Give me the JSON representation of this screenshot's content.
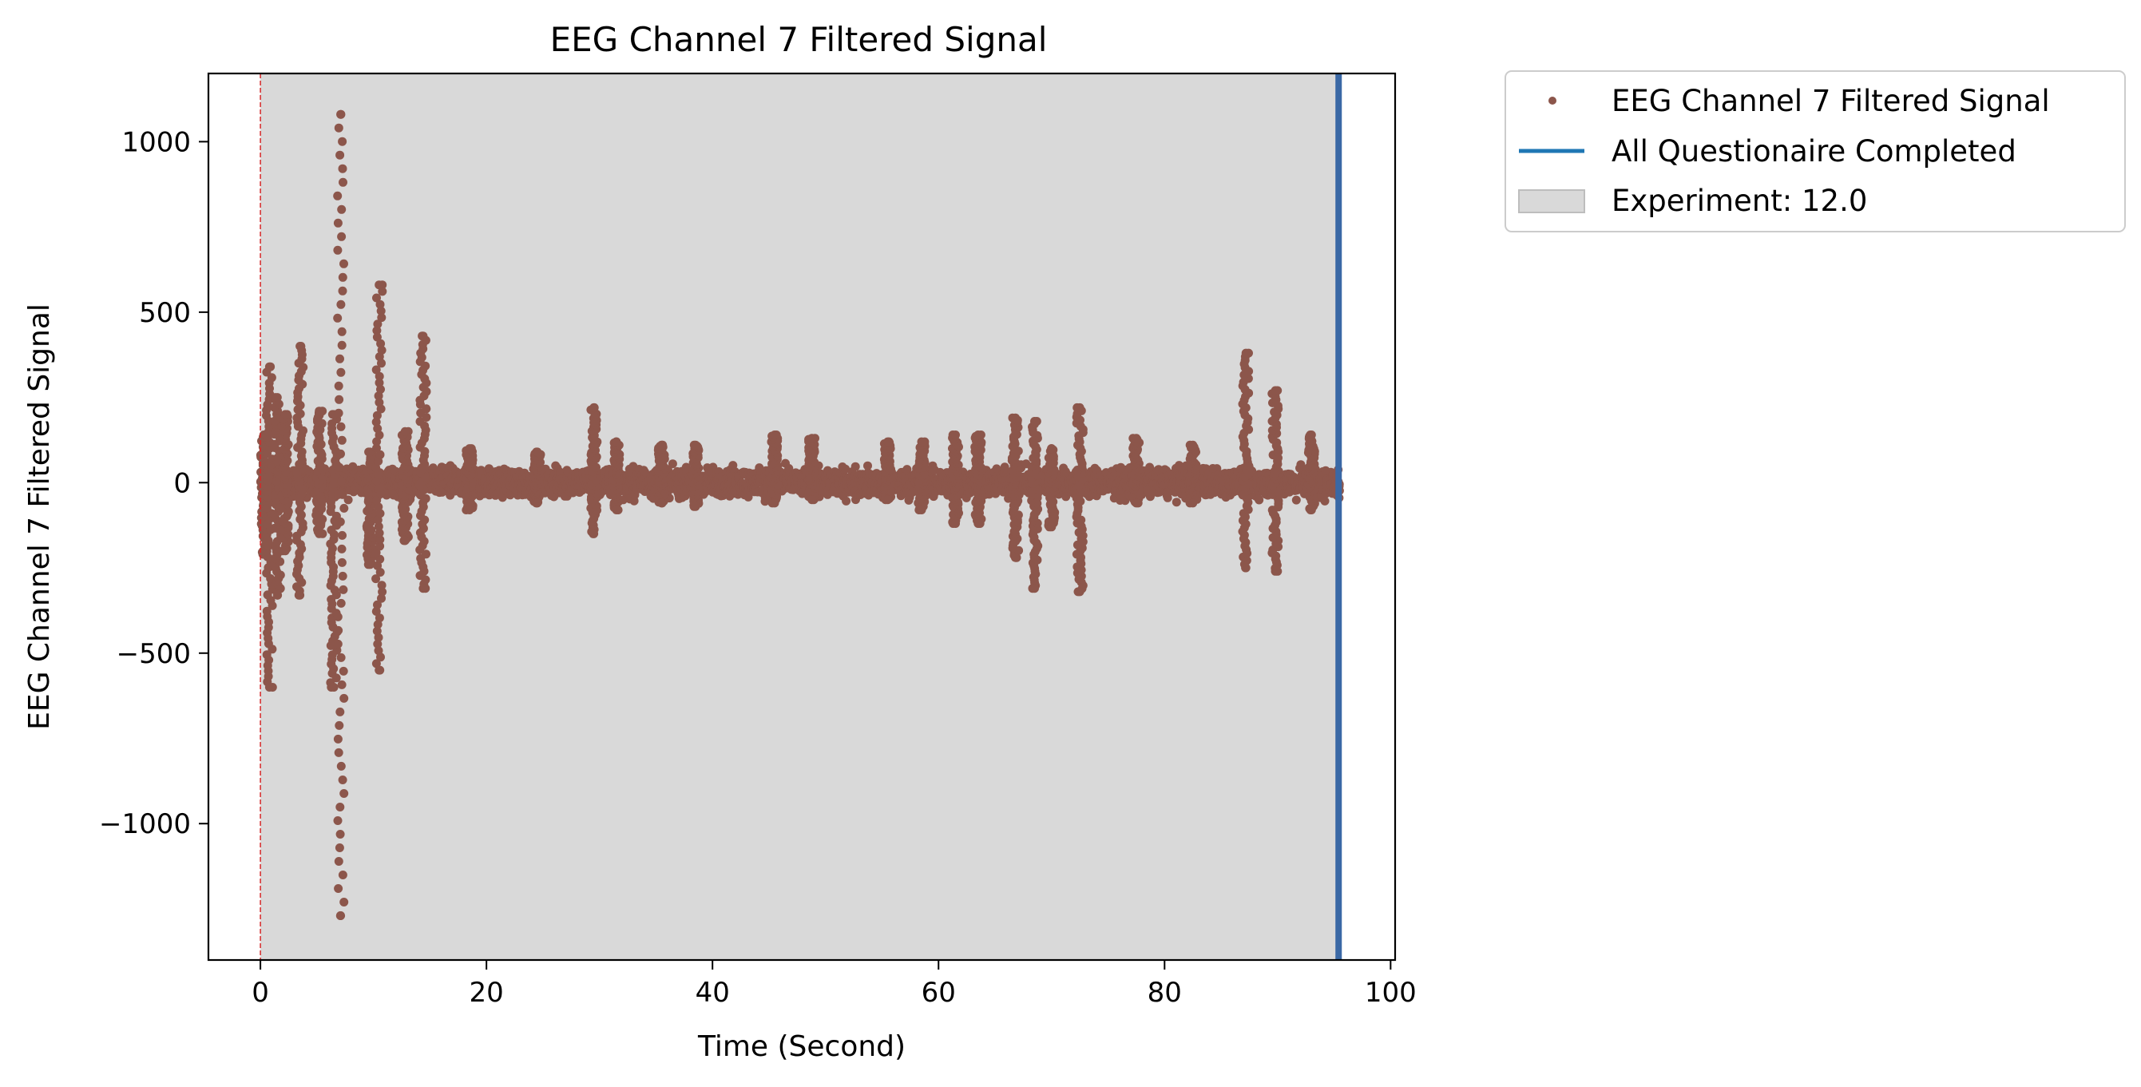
{
  "chart_data": {
    "type": "scatter",
    "title": "EEG Channel 7 Filtered Signal",
    "xlabel": "Time (Second)",
    "ylabel": "EEG Channel 7 Filtered Signal",
    "xlim": [
      -4.6,
      100.4
    ],
    "ylim": [
      -1400,
      1200
    ],
    "xticks": [
      0,
      20,
      40,
      60,
      80,
      100
    ],
    "yticks": [
      -1000,
      -500,
      0,
      500,
      1000
    ],
    "xtick_labels": [
      "0",
      "20",
      "40",
      "60",
      "80",
      "100"
    ],
    "ytick_labels": [
      "−1000",
      "−500",
      "0",
      "500",
      "1000"
    ],
    "grid": false,
    "legend_position": "outside-upper-right",
    "legend": [
      {
        "label": "EEG Channel 7 Filtered Signal",
        "kind": "marker",
        "color": "#8c564b"
      },
      {
        "label": "All Questionaire Completed",
        "kind": "line",
        "color": "#1f77b4"
      },
      {
        "label": "Experiment: 12.0",
        "kind": "patch",
        "color": "#d9d9d9"
      }
    ],
    "shaded_region": {
      "label": "Experiment: 12.0",
      "x_start": 0,
      "x_end": 95.4,
      "color": "#d9d9d9"
    },
    "event_lines": [
      {
        "label": "All Questionaire Completed",
        "x": 95.4,
        "color": "#3a68a5"
      },
      {
        "label": "",
        "x": 0,
        "color": "#d62728",
        "style": "dashed"
      }
    ],
    "series": [
      {
        "name": "EEG Channel 7 Filtered Signal",
        "color": "#8c564b",
        "x_range": [
          0,
          95.4
        ],
        "baseline_band": [
          -60,
          60
        ],
        "bursts": [
          {
            "x": 0.3,
            "min": -210,
            "max": 140
          },
          {
            "x": 0.8,
            "min": -600,
            "max": 340
          },
          {
            "x": 1.5,
            "min": -330,
            "max": 250
          },
          {
            "x": 2.2,
            "min": -200,
            "max": 200
          },
          {
            "x": 3.5,
            "min": -330,
            "max": 400
          },
          {
            "x": 5.2,
            "min": -150,
            "max": 210
          },
          {
            "x": 6.5,
            "min": -600,
            "max": 200
          },
          {
            "x": 7.1,
            "min": -1270,
            "max": 1080
          },
          {
            "x": 9.7,
            "min": -240,
            "max": 90
          },
          {
            "x": 10.5,
            "min": -550,
            "max": 580
          },
          {
            "x": 12.8,
            "min": -170,
            "max": 150
          },
          {
            "x": 14.4,
            "min": -310,
            "max": 430
          },
          {
            "x": 18.5,
            "min": -80,
            "max": 100
          },
          {
            "x": 24.5,
            "min": -60,
            "max": 90
          },
          {
            "x": 29.5,
            "min": -150,
            "max": 220
          },
          {
            "x": 31.5,
            "min": -80,
            "max": 120
          },
          {
            "x": 35.5,
            "min": -60,
            "max": 110
          },
          {
            "x": 38.5,
            "min": -70,
            "max": 110
          },
          {
            "x": 45.5,
            "min": -60,
            "max": 140
          },
          {
            "x": 48.8,
            "min": -50,
            "max": 130
          },
          {
            "x": 55.5,
            "min": -50,
            "max": 120
          },
          {
            "x": 58.5,
            "min": -80,
            "max": 120
          },
          {
            "x": 61.5,
            "min": -120,
            "max": 140
          },
          {
            "x": 63.5,
            "min": -120,
            "max": 140
          },
          {
            "x": 66.8,
            "min": -220,
            "max": 190
          },
          {
            "x": 68.5,
            "min": -310,
            "max": 180
          },
          {
            "x": 70.0,
            "min": -130,
            "max": 100
          },
          {
            "x": 72.5,
            "min": -320,
            "max": 220
          },
          {
            "x": 77.5,
            "min": -60,
            "max": 130
          },
          {
            "x": 82.5,
            "min": -60,
            "max": 110
          },
          {
            "x": 87.2,
            "min": -250,
            "max": 380
          },
          {
            "x": 89.8,
            "min": -260,
            "max": 270
          },
          {
            "x": 93.0,
            "min": -80,
            "max": 140
          }
        ]
      }
    ]
  }
}
